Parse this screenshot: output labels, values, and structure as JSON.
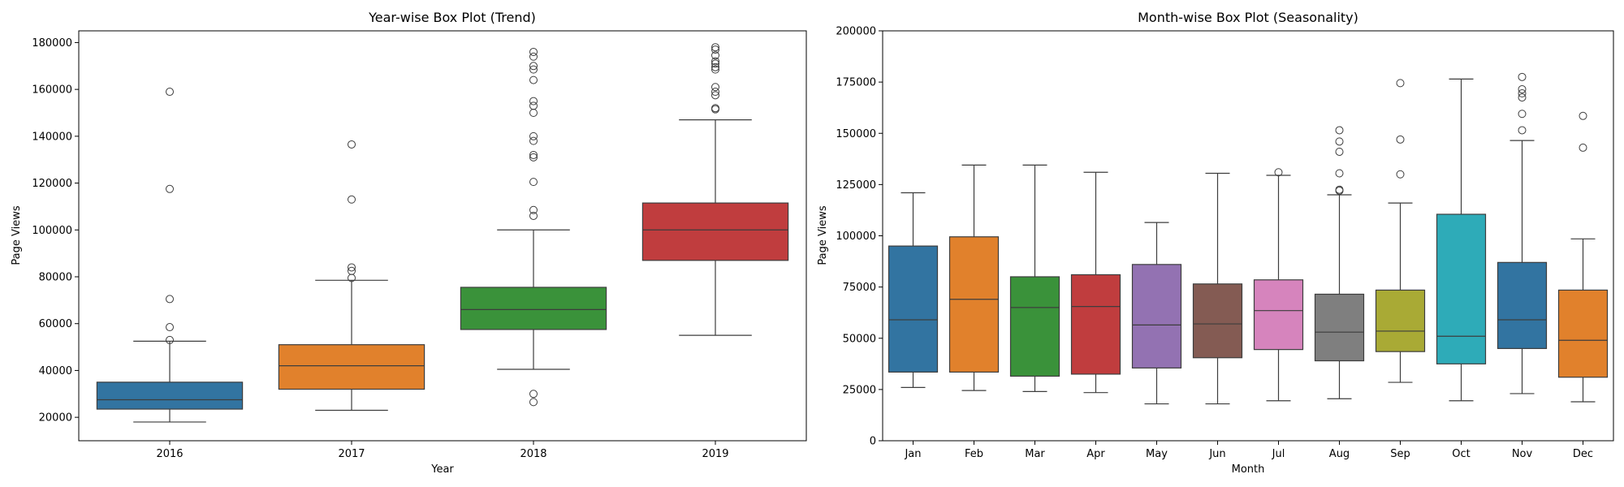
{
  "chart_data": [
    {
      "type": "box",
      "title": "Year-wise Box Plot (Trend)",
      "xlabel": "Year",
      "ylabel": "Page Views",
      "ylim": [
        10000,
        185000
      ],
      "yticks": [
        20000,
        40000,
        60000,
        80000,
        100000,
        120000,
        140000,
        160000,
        180000
      ],
      "grid": false,
      "legend": "none",
      "categories": [
        "2016",
        "2017",
        "2018",
        "2019"
      ],
      "colors": [
        "#3274a1",
        "#e1812c",
        "#3a923a",
        "#c03d3e"
      ],
      "boxes": [
        {
          "whisker_low": 18000,
          "q1": 23500,
          "median": 27500,
          "q3": 35000,
          "whisker_high": 52500,
          "outliers": [
            53000,
            58500,
            70500,
            117500,
            159000
          ]
        },
        {
          "whisker_low": 23000,
          "q1": 32000,
          "median": 42000,
          "q3": 51000,
          "whisker_high": 78500,
          "outliers": [
            79500,
            82500,
            84000,
            113000,
            136500
          ]
        },
        {
          "whisker_low": 40500,
          "q1": 57500,
          "median": 66000,
          "q3": 75500,
          "whisker_high": 100000,
          "outliers": [
            26500,
            30000,
            106000,
            108500,
            120500,
            131000,
            132000,
            138000,
            140000,
            150000,
            153000,
            155000,
            164000,
            168500,
            170000,
            174000,
            176000
          ]
        },
        {
          "whisker_low": 55000,
          "q1": 87000,
          "median": 100000,
          "q3": 111500,
          "whisker_high": 147000,
          "outliers": [
            151500,
            152000,
            157500,
            159000,
            161000,
            168500,
            169500,
            171000,
            172000,
            174500,
            177000,
            178000
          ]
        }
      ]
    },
    {
      "type": "box",
      "title": "Month-wise Box Plot (Seasonality)",
      "xlabel": "Month",
      "ylabel": "Page Views",
      "ylim": [
        0,
        200000
      ],
      "yticks": [
        0,
        25000,
        50000,
        75000,
        100000,
        125000,
        150000,
        175000,
        200000
      ],
      "grid": false,
      "legend": "none",
      "categories": [
        "Jan",
        "Feb",
        "Mar",
        "Apr",
        "May",
        "Jun",
        "Jul",
        "Aug",
        "Sep",
        "Oct",
        "Nov",
        "Dec"
      ],
      "colors": [
        "#3274a1",
        "#e1812c",
        "#3a923a",
        "#c03d3e",
        "#9372b2",
        "#845b53",
        "#d684bd",
        "#7f7f7f",
        "#a9aa35",
        "#2eabb8",
        "#3274a1",
        "#e1812c"
      ],
      "boxes": [
        {
          "whisker_low": 26000,
          "q1": 33500,
          "median": 59000,
          "q3": 95000,
          "whisker_high": 121000,
          "outliers": []
        },
        {
          "whisker_low": 24500,
          "q1": 33500,
          "median": 69000,
          "q3": 99500,
          "whisker_high": 134500,
          "outliers": []
        },
        {
          "whisker_low": 24000,
          "q1": 31500,
          "median": 65000,
          "q3": 80000,
          "whisker_high": 134500,
          "outliers": []
        },
        {
          "whisker_low": 23500,
          "q1": 32500,
          "median": 65500,
          "q3": 81000,
          "whisker_high": 131000,
          "outliers": []
        },
        {
          "whisker_low": 18000,
          "q1": 35500,
          "median": 56500,
          "q3": 86000,
          "whisker_high": 106500,
          "outliers": []
        },
        {
          "whisker_low": 18000,
          "q1": 40500,
          "median": 57000,
          "q3": 76500,
          "whisker_high": 130500,
          "outliers": []
        },
        {
          "whisker_low": 19500,
          "q1": 44500,
          "median": 63500,
          "q3": 78500,
          "whisker_high": 129500,
          "outliers": [
            131000
          ]
        },
        {
          "whisker_low": 20500,
          "q1": 39000,
          "median": 53000,
          "q3": 71500,
          "whisker_high": 120000,
          "outliers": [
            122000,
            122500,
            130500,
            141000,
            146000,
            151500
          ]
        },
        {
          "whisker_low": 28500,
          "q1": 43500,
          "median": 53500,
          "q3": 73500,
          "whisker_high": 116000,
          "outliers": [
            130000,
            147000,
            174500
          ]
        },
        {
          "whisker_low": 19500,
          "q1": 37500,
          "median": 51000,
          "q3": 110500,
          "whisker_high": 176500,
          "outliers": []
        },
        {
          "whisker_low": 23000,
          "q1": 45000,
          "median": 59000,
          "q3": 87000,
          "whisker_high": 146500,
          "outliers": [
            151500,
            159500,
            167500,
            169500,
            171500,
            177500
          ]
        },
        {
          "whisker_low": 19000,
          "q1": 31000,
          "median": 49000,
          "q3": 73500,
          "whisker_high": 98500,
          "outliers": [
            143000,
            158500
          ]
        }
      ]
    }
  ]
}
